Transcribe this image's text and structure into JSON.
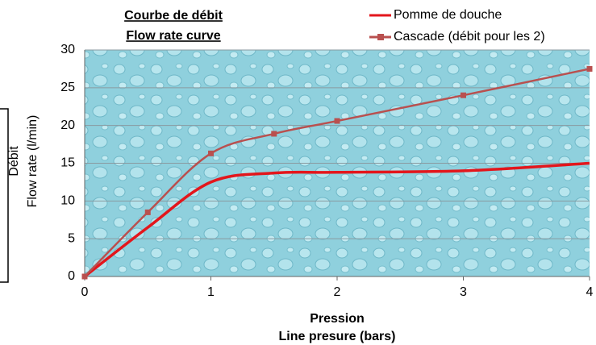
{
  "chart_data": {
    "type": "line",
    "title": [
      "Courbe de débit",
      "Flow rate curve"
    ],
    "y_label": [
      "Débit",
      "Flow rate (l/min)"
    ],
    "x_label": [
      "Pression",
      "Line presure (bars)"
    ],
    "x": [
      0,
      0.5,
      1,
      1.5,
      2,
      3,
      4
    ],
    "series": [
      {
        "name": "Pomme de douche",
        "color": "#e3161c",
        "values": [
          0,
          6.5,
          12.5,
          13.7,
          13.8,
          14,
          15
        ]
      },
      {
        "name": "Cascade (débit pour les 2)",
        "color": "#b9504f",
        "marker": "square",
        "values": [
          0,
          8.5,
          16.3,
          18.9,
          20.6,
          24,
          27.5
        ]
      }
    ],
    "xlim": [
      0,
      4
    ],
    "xticks": [
      0,
      1,
      2,
      3,
      4
    ],
    "ylim": [
      0,
      30
    ],
    "yticks": [
      0,
      5,
      10,
      15,
      20,
      25,
      30
    ],
    "grid": true
  }
}
